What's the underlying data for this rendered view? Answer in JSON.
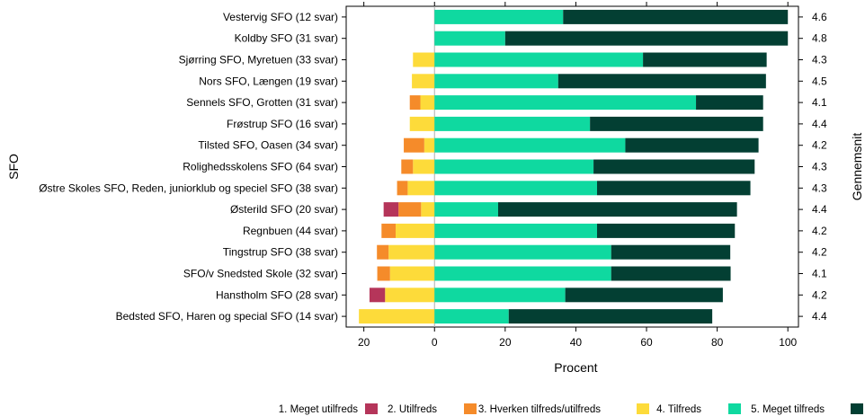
{
  "chart_data": {
    "type": "bar",
    "orientation": "horizontal-diverging-stacked",
    "xlabel": "Procent",
    "ylabel": "SFO",
    "right_label": "Gennemsnit",
    "xlim": [
      -25,
      103
    ],
    "x_ticks": [
      {
        "value": -20,
        "label": "20"
      },
      {
        "value": 0,
        "label": "0"
      },
      {
        "value": 20,
        "label": "20"
      },
      {
        "value": 40,
        "label": "40"
      },
      {
        "value": 60,
        "label": "60"
      },
      {
        "value": 80,
        "label": "80"
      },
      {
        "value": 100,
        "label": "100"
      }
    ],
    "series": [
      {
        "name": "1. Meget utilfreds",
        "color": "#b5355a",
        "side": "negative"
      },
      {
        "name": "2. Utilfreds",
        "color": "#f58b2a",
        "side": "negative"
      },
      {
        "name": "3. Hverken tilfreds/utilfreds",
        "color": "#fddb3a",
        "side": "negative"
      },
      {
        "name": "4. Tilfreds",
        "color": "#0fd9a0",
        "side": "positive"
      },
      {
        "name": "5. Meget tilfreds",
        "color": "#033f33",
        "side": "positive"
      }
    ],
    "categories": [
      {
        "label": "Vestervig SFO (12 svar)",
        "avg": "4.6",
        "values": [
          0,
          0,
          0,
          36.4,
          63.6
        ]
      },
      {
        "label": "Koldby SFO (31 svar)",
        "avg": "4.8",
        "values": [
          0,
          0,
          0,
          20.0,
          80.0
        ]
      },
      {
        "label": "Sjørring SFO, Myretuen (33 svar)",
        "avg": "4.3",
        "values": [
          0,
          0,
          6.1,
          59.0,
          35.0
        ]
      },
      {
        "label": "Nors SFO, Længen (19 svar)",
        "avg": "4.5",
        "values": [
          0,
          0,
          6.4,
          35.0,
          58.8
        ]
      },
      {
        "label": "Sennels SFO, Grotten (31 svar)",
        "avg": "4.1",
        "values": [
          0,
          3.0,
          4.0,
          74.0,
          19.0
        ]
      },
      {
        "label": "Frøstrup SFO (16 svar)",
        "avg": "4.4",
        "values": [
          0,
          0,
          7.0,
          44.0,
          49.0
        ]
      },
      {
        "label": "Tilsted SFO, Oasen (34 svar)",
        "avg": "4.2",
        "values": [
          0,
          5.8,
          2.9,
          54.0,
          37.7
        ]
      },
      {
        "label": "Rolighedsskolens SFO (64 svar)",
        "avg": "4.3",
        "values": [
          0,
          3.3,
          6.1,
          45.0,
          45.6
        ]
      },
      {
        "label": "Østre Skoles SFO, Reden, juniorklub og speciel SFO (38 svar)",
        "avg": "4.3",
        "values": [
          0,
          3.0,
          7.6,
          46.0,
          43.4
        ]
      },
      {
        "label": "Østerild SFO (20 svar)",
        "avg": "4.4",
        "values": [
          4.2,
          6.4,
          3.8,
          18.0,
          67.6
        ]
      },
      {
        "label": "Regnbuen (44 svar)",
        "avg": "4.2",
        "values": [
          0,
          4.0,
          11.0,
          46.0,
          39.0
        ]
      },
      {
        "label": "Tingstrup SFO (38 svar)",
        "avg": "4.2",
        "values": [
          0,
          3.3,
          13.0,
          50.0,
          33.7
        ]
      },
      {
        "label": "SFO/v Snedsted Skole (32 svar)",
        "avg": "4.1",
        "values": [
          0,
          3.6,
          12.6,
          50.0,
          33.8
        ]
      },
      {
        "label": "Hanstholm SFO (28 svar)",
        "avg": "4.2",
        "values": [
          4.4,
          0,
          14.0,
          37.0,
          44.6
        ]
      },
      {
        "label": "Bedsted SFO, Haren og special SFO (14 svar)",
        "avg": "4.4",
        "values": [
          0,
          0,
          21.4,
          21.0,
          57.6
        ]
      }
    ],
    "grid": false,
    "legend_position": "bottom"
  }
}
